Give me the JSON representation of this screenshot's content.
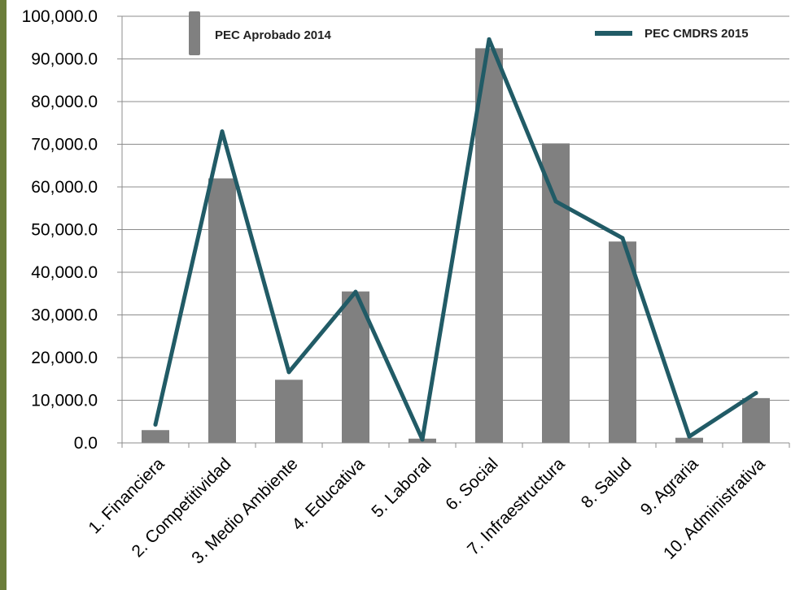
{
  "chart_data": {
    "type": "bar",
    "categories": [
      "1. Financiera",
      "2. Competitividad",
      "3. Medio Ambiente",
      "4. Educativa",
      "5. Laboral",
      "6. Social",
      "7. Infraestructura",
      "8. Salud",
      "9. Agraria",
      "10. Administrativa"
    ],
    "series": [
      {
        "name": "PEC Aprobado 2014",
        "type": "bar",
        "color": "#808080",
        "values": [
          3000,
          62000,
          14800,
          35500,
          1000,
          92500,
          70200,
          47200,
          1200,
          10500
        ]
      },
      {
        "name": "PEC CMDRS 2015",
        "type": "line",
        "color": "#215b66",
        "values": [
          4300,
          73000,
          16600,
          35400,
          800,
          94600,
          56600,
          48000,
          1500,
          11700
        ]
      }
    ],
    "ylim": [
      0,
      100000
    ],
    "yticks": [
      "0.0",
      "10,000.0",
      "20,000.0",
      "30,000.0",
      "40,000.0",
      "50,000.0",
      "60,000.0",
      "70,000.0",
      "80,000.0",
      "90,000.0",
      "100,000.0"
    ],
    "gridlines": true,
    "legend_position": "top"
  }
}
